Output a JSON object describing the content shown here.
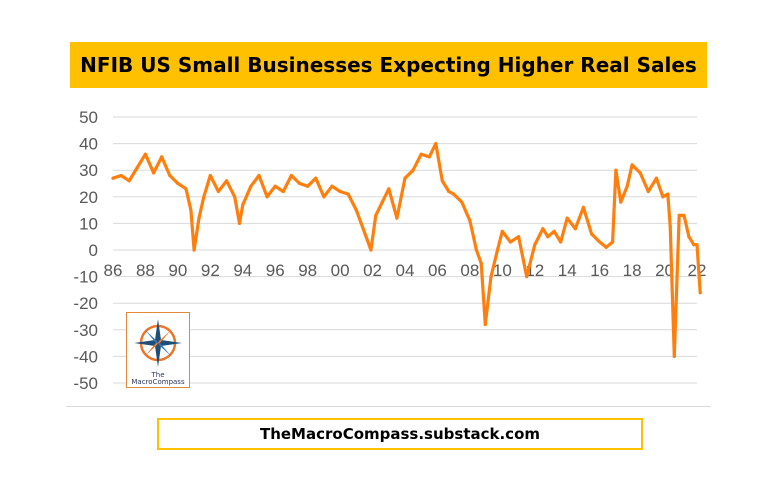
{
  "header": {
    "title": "NFIB US Small Businesses Expecting Higher Real Sales"
  },
  "footer": {
    "text": "TheMacroCompass.substack.com"
  },
  "logo": {
    "line1": "The",
    "line2": "MacroCompass"
  },
  "colors": {
    "line": "#ff7f0e",
    "title_bg": "#ffc000",
    "grid": "#d9d9d9",
    "axis_text": "#595959"
  },
  "chart_data": {
    "type": "line",
    "title": "NFIB US Small Businesses Expecting Higher Real Sales",
    "xlabel": "",
    "ylabel": "",
    "xlim": [
      1986,
      2022
    ],
    "ylim": [
      -50,
      50
    ],
    "yticks": [
      50,
      40,
      30,
      20,
      10,
      0,
      -10,
      -20,
      -30,
      -40,
      -50
    ],
    "xticks": [
      "86",
      "88",
      "90",
      "92",
      "94",
      "96",
      "98",
      "00",
      "02",
      "04",
      "06",
      "08",
      "10",
      "12",
      "14",
      "16",
      "18",
      "20",
      "22"
    ],
    "grid": true,
    "legend": "none",
    "series": [
      {
        "x": [
          1986.0,
          1986.5,
          1987.0,
          1987.5,
          1988.0,
          1988.5,
          1989.0,
          1989.5,
          1990.0,
          1990.5,
          1990.8,
          1991.0,
          1991.3,
          1991.6,
          1992.0,
          1992.5,
          1993.0,
          1993.5,
          1993.8,
          1994.0,
          1994.5,
          1995.0,
          1995.5,
          1996.0,
          1996.5,
          1997.0,
          1997.5,
          1998.0,
          1998.5,
          1999.0,
          1999.5,
          2000.0,
          2000.5,
          2001.0,
          2001.3,
          2001.6,
          2001.9,
          2002.2,
          2002.6,
          2003.0,
          2003.5,
          2004.0,
          2004.5,
          2005.0,
          2005.5,
          2005.9,
          2006.3,
          2006.7,
          2007.0,
          2007.5,
          2008.0,
          2008.4,
          2008.7,
          2008.95,
          2009.3,
          2009.7,
          2010.0,
          2010.5,
          2011.0,
          2011.5,
          2012.0,
          2012.5,
          2012.8,
          2013.2,
          2013.6,
          2014.0,
          2014.5,
          2015.0,
          2015.5,
          2016.0,
          2016.4,
          2016.8,
          2017.0,
          2017.3,
          2017.7,
          2018.0,
          2018.5,
          2019.0,
          2019.5,
          2019.9,
          2020.2,
          2020.35,
          2020.6,
          2020.9,
          2021.2,
          2021.5,
          2021.8,
          2022.0,
          2022.2
        ],
        "values": [
          27,
          28,
          26,
          31,
          36,
          29,
          35,
          28,
          25,
          23,
          15,
          0,
          12,
          20,
          28,
          22,
          26,
          20,
          10,
          17,
          24,
          28,
          20,
          24,
          22,
          28,
          25,
          24,
          27,
          20,
          24,
          22,
          21,
          15,
          10,
          5,
          0,
          13,
          18,
          23,
          12,
          27,
          30,
          36,
          35,
          40,
          26,
          22,
          21,
          18,
          11,
          0,
          -5,
          -28,
          -10,
          0,
          7,
          3,
          5,
          -10,
          2,
          8,
          5,
          7,
          3,
          12,
          8,
          16,
          6,
          3,
          1,
          3,
          30,
          18,
          24,
          32,
          29,
          22,
          27,
          20,
          21,
          9,
          -40,
          13,
          13,
          5,
          2,
          2,
          -16
        ]
      }
    ]
  }
}
